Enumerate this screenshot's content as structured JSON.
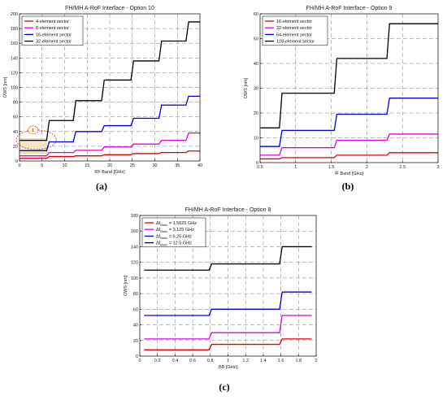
{
  "chart_data": [
    {
      "panel_label": "(a)",
      "type": "line",
      "step": true,
      "title": "FH/MH A-RoF Interface - Option 10",
      "xlabel": "RF Band [GHz]",
      "ylabel": "OWS [nm]",
      "xlim": [
        0,
        40
      ],
      "ylim": [
        0,
        200
      ],
      "xticks": [
        "0",
        "5",
        "10",
        "15",
        "20",
        "25",
        "30",
        "35",
        "40"
      ],
      "yticks": [
        "0",
        "20",
        "40",
        "60",
        "80",
        "100",
        "120",
        "140",
        "160",
        "180",
        "200"
      ],
      "grid": true,
      "legend_position": "top-left",
      "annotation": {
        "text": "1",
        "shape": "dashed circle with shaded box",
        "x": [
          0,
          6
        ],
        "y": [
          10,
          30
        ]
      },
      "series": [
        {
          "name": "4-element sector",
          "color": "#e00000",
          "x": [
            0,
            6.3,
            12.2,
            18.5,
            25,
            31.2,
            37.2,
            40
          ],
          "y": [
            3.5,
            6,
            7,
            8.5,
            10,
            11.5,
            13.5,
            13.5
          ]
        },
        {
          "name": "8-element sector",
          "color": "#e000e0",
          "x": [
            0,
            6.3,
            12.2,
            18.5,
            25,
            31.2,
            37.2,
            40
          ],
          "y": [
            7,
            11.5,
            14.5,
            19,
            23,
            28,
            38,
            39
          ]
        },
        {
          "name": "16-element sector",
          "color": "#0000e0",
          "x": [
            0,
            6.3,
            12.2,
            18.5,
            25,
            31.2,
            37.2,
            40
          ],
          "y": [
            14,
            26,
            40,
            48,
            58,
            76,
            88,
            88
          ]
        },
        {
          "name": "32-element sector",
          "color": "#000000",
          "x": [
            0,
            6.3,
            12.2,
            18.5,
            25,
            31.2,
            37.2,
            40
          ],
          "y": [
            28,
            55,
            82,
            110,
            136,
            163,
            189,
            189
          ]
        }
      ]
    },
    {
      "panel_label": "(b)",
      "type": "line",
      "step": true,
      "title": "FH/MH A-RoF Interface - Option 9",
      "xlabel": "IF Band [GHz]",
      "ylabel": "OWS [nm]",
      "xlim": [
        0.5,
        3
      ],
      "ylim": [
        0,
        60
      ],
      "xticks": [
        "0.5",
        "1",
        "1.5",
        "2",
        "2.5",
        "3"
      ],
      "yticks": [
        "0",
        "10",
        "20",
        "30",
        "40",
        "50",
        "60"
      ],
      "grid": true,
      "legend_position": "top-left",
      "series": [
        {
          "name": "16-element sector",
          "color": "#e00000",
          "x": [
            0.5,
            0.79,
            1.56,
            2.3,
            3
          ],
          "y": [
            1.5,
            2,
            3,
            4,
            4
          ]
        },
        {
          "name": "32-element sector",
          "color": "#e000e0",
          "x": [
            0.5,
            0.79,
            1.56,
            2.3,
            3
          ],
          "y": [
            3,
            6,
            9,
            11.5,
            11.5
          ]
        },
        {
          "name": "64-element sector",
          "color": "#0000e0",
          "x": [
            0.5,
            0.79,
            1.56,
            2.3,
            3
          ],
          "y": [
            6.5,
            13,
            19.5,
            26,
            26
          ]
        },
        {
          "name": "128-element sector",
          "color": "#000000",
          "x": [
            0.5,
            0.79,
            1.56,
            2.3,
            3
          ],
          "y": [
            14,
            28,
            42,
            56,
            56
          ]
        }
      ]
    },
    {
      "panel_label": "(c)",
      "type": "line",
      "step": true,
      "title": "FH/MH A-RoF Interface - Option 8",
      "xlabel": "BB [GHz]",
      "ylabel": "OWS [nm]",
      "xlim": [
        0,
        2
      ],
      "ylim": [
        0,
        180
      ],
      "xticks": [
        "0",
        "0.2",
        "0.4",
        "0.6",
        "0.8",
        "1",
        "1.2",
        "1.4",
        "1.6",
        "1.8",
        "2"
      ],
      "yticks": [
        "0",
        "20",
        "40",
        "60",
        "80",
        "100",
        "120",
        "140",
        "160",
        "180"
      ],
      "grid": true,
      "legend_position": "top-left",
      "series": [
        {
          "name": "Δf_Bmin = 1.5625 GHz",
          "legend_main": "Δf",
          "legend_sub": "Bmin",
          "legend_rest": " = 1.5625 GHz",
          "color": "#e00000",
          "x": [
            0.05,
            0.8,
            1.6,
            1.95
          ],
          "y": [
            8,
            15,
            22,
            22
          ]
        },
        {
          "name": "Δf_Bmin = 3.125 GHz",
          "legend_main": "Δf",
          "legend_sub": "Bmin",
          "legend_rest": " = 3.125 GHz",
          "color": "#e000e0",
          "x": [
            0.05,
            0.8,
            1.6,
            1.95
          ],
          "y": [
            22,
            30,
            52,
            52
          ]
        },
        {
          "name": "Δf_Bmin = 6.25 GHz",
          "legend_main": "Δf",
          "legend_sub": "Bmin",
          "legend_rest": " = 6.25 GHz",
          "color": "#0000e0",
          "x": [
            0.05,
            0.8,
            1.6,
            1.95
          ],
          "y": [
            52,
            60,
            82,
            82
          ]
        },
        {
          "name": "Δf_Bmin = 12.5 GHz",
          "legend_main": "Δf",
          "legend_sub": "Bmin",
          "legend_rest": " = 12.5 GHz",
          "color": "#000000",
          "x": [
            0.05,
            0.8,
            1.6,
            1.95
          ],
          "y": [
            110,
            118,
            140,
            140
          ]
        }
      ]
    }
  ]
}
